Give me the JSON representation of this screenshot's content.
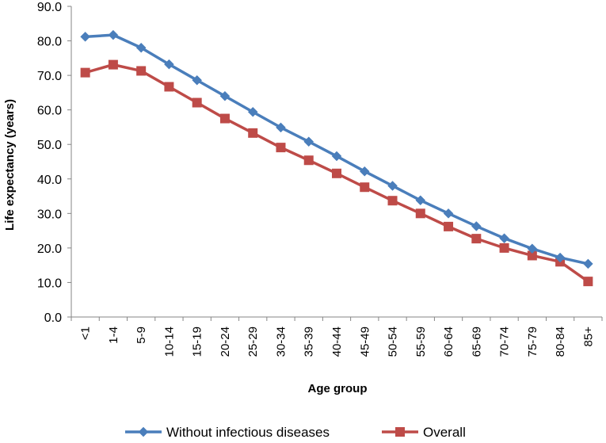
{
  "chart_data": {
    "type": "line",
    "title": "",
    "xlabel": "Age group",
    "ylabel": "Life expectancy (years)",
    "ylim": [
      0,
      90
    ],
    "ytick_step": 10,
    "ytick_format": "0.0",
    "grid": false,
    "legend_position": "bottom",
    "categories": [
      "<1",
      "1-4",
      "5-9",
      "10-14",
      "15-19",
      "20-24",
      "25-29",
      "30-34",
      "35-39",
      "40-44",
      "45-49",
      "50-54",
      "55-59",
      "60-64",
      "65-69",
      "70-74",
      "75-79",
      "80-84",
      "85+"
    ],
    "series": [
      {
        "name": "Without infectious diseases",
        "color": "#4a7ebb",
        "marker": "diamond",
        "values": [
          81.2,
          81.7,
          78.0,
          73.2,
          68.6,
          64.0,
          59.4,
          54.9,
          50.8,
          46.6,
          42.2,
          38.0,
          33.8,
          30.0,
          26.3,
          22.8,
          19.8,
          17.2,
          15.4
        ]
      },
      {
        "name": "Overall",
        "color": "#be4b48",
        "marker": "square",
        "values": [
          70.8,
          73.1,
          71.3,
          66.7,
          62.1,
          57.5,
          53.3,
          49.1,
          45.4,
          41.6,
          37.6,
          33.7,
          30.0,
          26.2,
          22.7,
          20.0,
          17.8,
          16.0,
          10.3
        ]
      }
    ]
  }
}
